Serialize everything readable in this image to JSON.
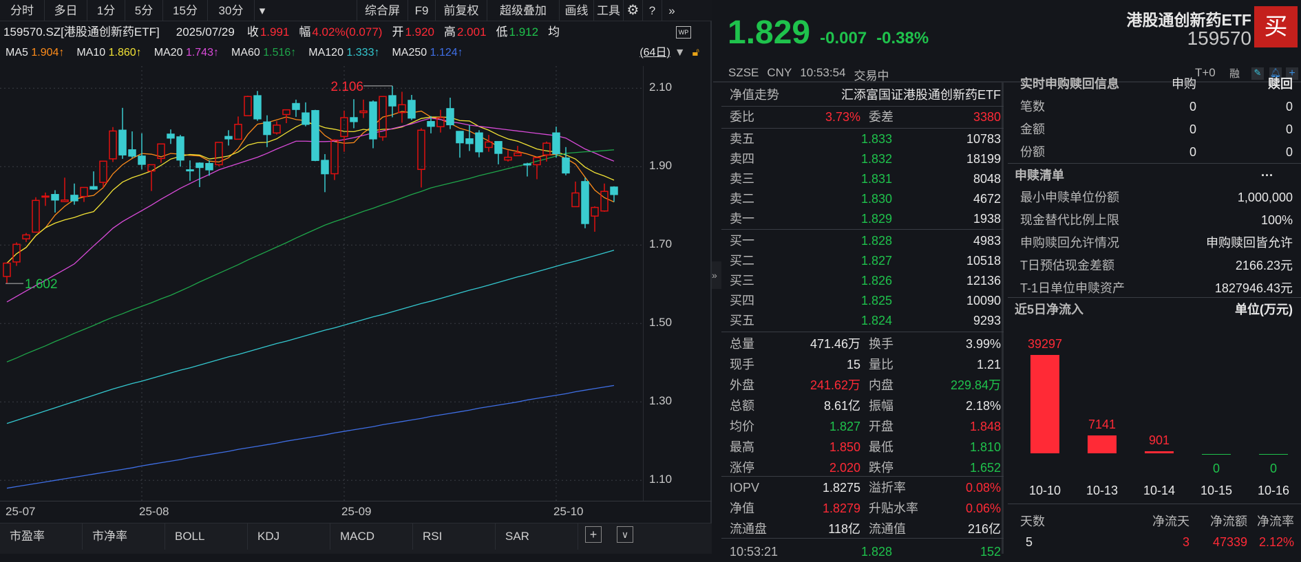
{
  "toolbar": {
    "periods": [
      "分时",
      "多日",
      "1分",
      "5分",
      "15分",
      "30分"
    ],
    "more": "▾",
    "actions": [
      "综合屏",
      "F9",
      "前复权",
      "超级叠加",
      "画线",
      "工具"
    ],
    "gear_icon": "gear-icon",
    "help_icon": "help-icon",
    "expand_icon": "double-chevron-right-icon"
  },
  "info": {
    "symbol": "159570.SZ[港股通创新药ETF]",
    "date": "2025/07/29",
    "close_label": "收",
    "close": "1.991",
    "change_label": "幅",
    "change": "4.02%(0.077)",
    "open_label": "开",
    "open": "1.920",
    "high_label": "高",
    "high": "2.001",
    "low_label": "低",
    "low": "1.912",
    "avg_label": "均",
    "wp_icon": "WP"
  },
  "ma_legend": [
    {
      "label": "MA5",
      "value": "1.904↑",
      "color": "#ff8c1a"
    },
    {
      "label": "MA10",
      "value": "1.860↑",
      "color": "#f2e235"
    },
    {
      "label": "MA20",
      "value": "1.743↑",
      "color": "#d94bd9"
    },
    {
      "label": "MA60",
      "value": "1.516↑",
      "color": "#1fa64a"
    },
    {
      "label": "MA120",
      "value": "1.333↑",
      "color": "#34c8d0"
    },
    {
      "label": "MA250",
      "value": "1.124↑",
      "color": "#3f6fe6"
    }
  ],
  "range_label": "(64日)",
  "colors": {
    "up": "#e01010",
    "down": "#3accd0",
    "bg": "#14161b",
    "grid": "#3a3d44",
    "red": "#ff2a36",
    "green": "#1fc24c"
  },
  "chart_data": {
    "type": "candlestick",
    "ylim": [
      1.05,
      2.15
    ],
    "yticks": [
      "2.10",
      "1.90",
      "1.70",
      "1.50",
      "1.30",
      "1.10"
    ],
    "xticks": [
      {
        "label": "25-07",
        "bar": 1
      },
      {
        "label": "25-08",
        "bar": 15
      },
      {
        "label": "25-09",
        "bar": 36
      },
      {
        "label": "25-10",
        "bar": 58
      }
    ],
    "grid": true,
    "ohlc": [
      [
        1.62,
        1.654,
        1.602,
        1.654
      ],
      [
        1.657,
        1.707,
        1.647,
        1.702
      ],
      [
        1.716,
        1.731,
        1.708,
        1.726
      ],
      [
        1.733,
        1.822,
        1.733,
        1.814
      ],
      [
        1.824,
        1.834,
        1.8,
        1.825
      ],
      [
        1.829,
        1.84,
        1.783,
        1.815
      ],
      [
        1.811,
        1.872,
        1.81,
        1.815
      ],
      [
        1.827,
        1.857,
        1.803,
        1.813
      ],
      [
        1.824,
        1.847,
        1.81,
        1.847
      ],
      [
        1.849,
        1.888,
        1.841,
        1.843
      ],
      [
        1.86,
        1.914,
        1.847,
        1.914
      ],
      [
        1.92,
        2.001,
        1.912,
        1.991
      ],
      [
        1.993,
        2.05,
        1.92,
        1.93
      ],
      [
        1.943,
        1.99,
        1.922,
        1.927
      ],
      [
        1.927,
        1.985,
        1.893,
        1.906
      ],
      [
        1.889,
        1.905,
        1.838,
        1.905
      ],
      [
        1.921,
        1.958,
        1.91,
        1.958
      ],
      [
        1.983,
        1.995,
        1.958,
        1.973
      ],
      [
        1.976,
        1.981,
        1.9,
        1.917
      ],
      [
        1.892,
        1.916,
        1.864,
        1.891
      ],
      [
        1.909,
        1.911,
        1.848,
        1.898
      ],
      [
        1.908,
        1.916,
        1.877,
        1.892
      ],
      [
        1.905,
        1.962,
        1.901,
        1.962
      ],
      [
        1.977,
        1.993,
        1.954,
        1.971
      ],
      [
        1.97,
        2.028,
        1.97,
        2.008
      ],
      [
        2.03,
        2.081,
        2.03,
        2.079
      ],
      [
        2.081,
        2.093,
        2.017,
        2.022
      ],
      [
        2.014,
        2.031,
        1.95,
        1.982
      ],
      [
        1.986,
        2.016,
        1.982,
        2.006
      ],
      [
        2.033,
        2.045,
        2.011,
        2.045
      ],
      [
        2.061,
        2.071,
        2.027,
        2.046
      ],
      [
        2.037,
        2.064,
        2.003,
        2.008
      ],
      [
        2.043,
        2.045,
        1.914,
        1.916
      ],
      [
        1.916,
        1.932,
        1.835,
        1.882
      ],
      [
        1.882,
        1.97,
        1.866,
        1.968
      ],
      [
        1.977,
        2.043,
        1.938,
        2.025
      ],
      [
        2.025,
        2.072,
        1.998,
        2.015
      ],
      [
        2.038,
        2.071,
        2.024,
        2.042
      ],
      [
        2.065,
        2.069,
        1.947,
        1.971
      ],
      [
        1.976,
        2.079,
        1.966,
        2.079
      ],
      [
        2.081,
        2.106,
        2.026,
        2.055
      ],
      [
        2.038,
        2.091,
        2.012,
        2.058
      ],
      [
        2.069,
        2.083,
        2.019,
        2.024
      ],
      [
        1.893,
        1.998,
        1.847,
        1.993
      ],
      [
        2.015,
        2.029,
        1.985,
        2.003
      ],
      [
        2.002,
        2.045,
        1.987,
        2.025
      ],
      [
        2.048,
        2.076,
        1.996,
        2.007
      ],
      [
        1.99,
        1.99,
        1.923,
        1.961
      ],
      [
        1.971,
        2.006,
        1.94,
        1.959
      ],
      [
        1.986,
        1.993,
        1.924,
        1.938
      ],
      [
        1.949,
        1.981,
        1.938,
        1.963
      ],
      [
        1.964,
        1.964,
        1.906,
        1.934
      ],
      [
        1.917,
        1.942,
        1.913,
        1.924
      ],
      [
        1.928,
        1.953,
        1.927,
        1.935
      ],
      [
        1.907,
        1.91,
        1.875,
        1.906
      ],
      [
        1.905,
        1.923,
        1.868,
        1.923
      ],
      [
        1.93,
        1.964,
        1.913,
        1.96
      ],
      [
        1.986,
        2.002,
        1.923,
        1.933
      ],
      [
        1.922,
        1.95,
        1.878,
        1.884
      ],
      [
        1.798,
        1.862,
        1.798,
        1.833
      ],
      [
        1.862,
        1.872,
        1.743,
        1.755
      ],
      [
        1.774,
        1.799,
        1.734,
        1.796
      ],
      [
        1.787,
        1.857,
        1.785,
        1.837
      ],
      [
        1.848,
        1.85,
        1.81,
        1.829
      ]
    ],
    "ma20": [
      1.555,
      1.569,
      1.583,
      1.597,
      1.61,
      1.624,
      1.638,
      1.652,
      1.675,
      1.698,
      1.72,
      1.743,
      1.76,
      1.774,
      1.788,
      1.802,
      1.817,
      1.831,
      1.845,
      1.857,
      1.869,
      1.88,
      1.892,
      1.9,
      1.908,
      1.916,
      1.924,
      1.934,
      1.945,
      1.955,
      1.965,
      1.965,
      1.964,
      1.964,
      1.965,
      1.969,
      1.974,
      1.98,
      1.986,
      1.991,
      1.997,
      2.003,
      2.009,
      2.017,
      2.024,
      2.02,
      2.015,
      2.011,
      2.006,
      2.003,
      2.0,
      1.997,
      1.994,
      1.991,
      1.988,
      1.985,
      1.982,
      1.979,
      1.973,
      1.959,
      1.945,
      1.935,
      1.924,
      1.914
    ],
    "ma60": [
      1.402,
      1.412,
      1.423,
      1.433,
      1.443,
      1.454,
      1.464,
      1.475,
      1.485,
      1.495,
      1.506,
      1.516,
      1.525,
      1.535,
      1.544,
      1.553,
      1.563,
      1.572,
      1.583,
      1.594,
      1.606,
      1.617,
      1.628,
      1.639,
      1.65,
      1.662,
      1.673,
      1.684,
      1.695,
      1.706,
      1.718,
      1.729,
      1.74,
      1.751,
      1.76,
      1.768,
      1.777,
      1.786,
      1.794,
      1.803,
      1.811,
      1.82,
      1.829,
      1.837,
      1.846,
      1.852,
      1.858,
      1.864,
      1.87,
      1.877,
      1.883,
      1.889,
      1.895,
      1.901,
      1.907,
      1.914,
      1.92,
      1.927,
      1.934,
      1.936,
      1.938,
      1.939,
      1.941,
      1.943
    ],
    "ma120": [
      1.245,
      1.253,
      1.261,
      1.269,
      1.277,
      1.285,
      1.293,
      1.301,
      1.309,
      1.317,
      1.325,
      1.333,
      1.34,
      1.347,
      1.353,
      1.36,
      1.367,
      1.374,
      1.381,
      1.387,
      1.394,
      1.401,
      1.408,
      1.415,
      1.421,
      1.428,
      1.435,
      1.442,
      1.449,
      1.455,
      1.462,
      1.469,
      1.476,
      1.483,
      1.489,
      1.496,
      1.503,
      1.51,
      1.517,
      1.523,
      1.53,
      1.537,
      1.544,
      1.551,
      1.557,
      1.564,
      1.571,
      1.578,
      1.585,
      1.591,
      1.598,
      1.605,
      1.612,
      1.619,
      1.625,
      1.632,
      1.639,
      1.646,
      1.653,
      1.659,
      1.666,
      1.673,
      1.68,
      1.687
    ],
    "ma250": [
      1.08,
      1.084,
      1.088,
      1.092,
      1.096,
      1.1,
      1.104,
      1.108,
      1.112,
      1.116,
      1.12,
      1.124,
      1.128,
      1.132,
      1.137,
      1.141,
      1.145,
      1.149,
      1.153,
      1.158,
      1.162,
      1.166,
      1.17,
      1.174,
      1.179,
      1.183,
      1.187,
      1.191,
      1.195,
      1.2,
      1.204,
      1.208,
      1.212,
      1.216,
      1.221,
      1.225,
      1.229,
      1.233,
      1.237,
      1.242,
      1.246,
      1.25,
      1.254,
      1.258,
      1.263,
      1.267,
      1.271,
      1.275,
      1.279,
      1.284,
      1.288,
      1.292,
      1.296,
      1.3,
      1.305,
      1.309,
      1.313,
      1.317,
      1.321,
      1.326,
      1.33,
      1.334,
      1.338,
      1.342
    ],
    "annotations": [
      {
        "label": "2.106",
        "bar": 41,
        "kind": "max"
      },
      {
        "label": "1.602",
        "bar": 1,
        "kind": "min"
      }
    ]
  },
  "bottom_tabs": [
    "市盈率",
    "市净率",
    "BOLL",
    "KDJ",
    "MACD",
    "RSI",
    "SAR"
  ],
  "bottom_buttons": {
    "add": "+",
    "menu": "∨"
  },
  "quote": {
    "price": "1.829",
    "change": "-0.007",
    "change_pct": "-0.38%",
    "name": "港股通创新药ETF",
    "code": "159570",
    "buy_label": "买",
    "exchange": "SZSE",
    "currency": "CNY",
    "time": "10:53:54",
    "status": "交易中",
    "t0": "T+0",
    "margin": "融"
  },
  "book": {
    "nav_trend_label": "净值走势",
    "fund_name": "汇添富国证港股通创新药ETF",
    "ratio_label": "委比",
    "ratio": "3.73%",
    "diff_label": "委差",
    "diff": "3380",
    "asks": [
      {
        "label": "卖五",
        "price": "1.833",
        "vol": "10783"
      },
      {
        "label": "卖四",
        "price": "1.832",
        "vol": "18199"
      },
      {
        "label": "卖三",
        "price": "1.831",
        "vol": "8048"
      },
      {
        "label": "卖二",
        "price": "1.830",
        "vol": "4672"
      },
      {
        "label": "卖一",
        "price": "1.829",
        "vol": "1938"
      }
    ],
    "bids": [
      {
        "label": "买一",
        "price": "1.828",
        "vol": "4983"
      },
      {
        "label": "买二",
        "price": "1.827",
        "vol": "10518"
      },
      {
        "label": "买三",
        "price": "1.826",
        "vol": "12136"
      },
      {
        "label": "买四",
        "price": "1.825",
        "vol": "10090"
      },
      {
        "label": "买五",
        "price": "1.824",
        "vol": "9293"
      }
    ],
    "stats": [
      {
        "l1": "总量",
        "v1": "471.46万",
        "c1": "white",
        "l2": "换手",
        "v2": "3.99%",
        "c2": "white"
      },
      {
        "l1": "现手",
        "v1": "15",
        "c1": "white",
        "l2": "量比",
        "v2": "1.21",
        "c2": "white"
      },
      {
        "l1": "外盘",
        "v1": "241.62万",
        "c1": "red",
        "l2": "内盘",
        "v2": "229.84万",
        "c2": "green"
      },
      {
        "l1": "总额",
        "v1": "8.61亿",
        "c1": "white",
        "l2": "振幅",
        "v2": "2.18%",
        "c2": "white"
      },
      {
        "l1": "均价",
        "v1": "1.827",
        "c1": "green",
        "l2": "开盘",
        "v2": "1.848",
        "c2": "red"
      },
      {
        "l1": "最高",
        "v1": "1.850",
        "c1": "red",
        "l2": "最低",
        "v2": "1.810",
        "c2": "green"
      },
      {
        "l1": "涨停",
        "v1": "2.020",
        "c1": "red",
        "l2": "跌停",
        "v2": "1.652",
        "c2": "green"
      }
    ],
    "etf": [
      {
        "l1": "IOPV",
        "v1": "1.8275",
        "c1": "white",
        "l2": "溢折率",
        "v2": "0.08%",
        "c2": "red"
      },
      {
        "l1": "净值",
        "v1": "1.8279",
        "c1": "red",
        "l2": "升贴水率",
        "v2": "0.06%",
        "c2": "red"
      },
      {
        "l1": "流通盘",
        "v1": "118亿",
        "c1": "white",
        "l2": "流通值",
        "v2": "216亿",
        "c2": "white"
      }
    ],
    "tick": {
      "time": "10:53:21",
      "price": "1.828",
      "vol": "152"
    }
  },
  "right": {
    "realtime_header": "实时申购赎回信息",
    "sub_label": "申购",
    "red_label": "赎回",
    "realtime_rows": [
      {
        "label": "笔数",
        "sub": "0",
        "red": "0"
      },
      {
        "label": "金额",
        "sub": "0",
        "red": "0"
      },
      {
        "label": "份额",
        "sub": "0",
        "red": "0"
      }
    ],
    "list_header": "申赎清单",
    "list_more": "···",
    "list_rows": [
      {
        "label": "最小申赎单位份额",
        "value": "1,000,000"
      },
      {
        "label": "现金替代比例上限",
        "value": "100%"
      },
      {
        "label": "申购赎回允许情况",
        "value": "申购赎回皆允许"
      },
      {
        "label": "T日预估现金差额",
        "value": "2166.23元"
      },
      {
        "label": "T-1日单位申赎资产",
        "value": "1827946.43元"
      }
    ],
    "flow_header": "近5日净流入",
    "flow_unit": "单位(万元)",
    "flow_chart": {
      "type": "bar",
      "categories": [
        "10-10",
        "10-13",
        "10-14",
        "10-15",
        "10-16"
      ],
      "values": [
        39297,
        7141,
        901,
        0,
        0
      ]
    },
    "summary_headers": [
      "天数",
      "净流天",
      "净流额",
      "净流率"
    ],
    "summary_values": [
      "5",
      "3",
      "47339",
      "2.12%"
    ]
  }
}
